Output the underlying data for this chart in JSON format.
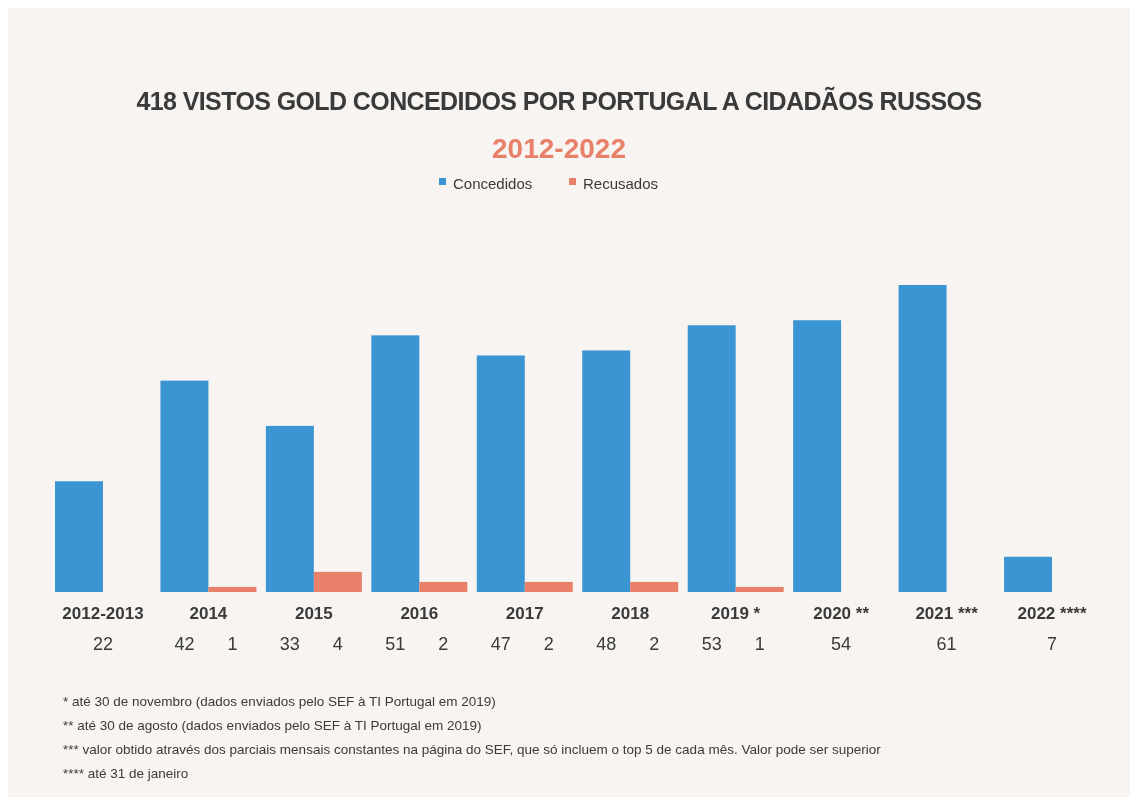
{
  "chart_data": {
    "type": "bar",
    "title": "418 VISTOS GOLD CONCEDIDOS POR PORTUGAL A CIDADÃOS RUSSOS",
    "subtitle": "2012-2022",
    "categories": [
      "2012-2013",
      "2014",
      "2015",
      "2016",
      "2017",
      "2018",
      "2019 *",
      "2020 **",
      "2021 ***",
      "2022 ****"
    ],
    "series": [
      {
        "name": "Concedidos",
        "color": "#3b95d3",
        "values": [
          22,
          42,
          33,
          51,
          47,
          48,
          53,
          54,
          61,
          7
        ]
      },
      {
        "name": "Recusados",
        "color": "#e8806a",
        "values": [
          null,
          1,
          4,
          2,
          2,
          2,
          1,
          null,
          null,
          null
        ]
      }
    ],
    "data_labels": true,
    "legend": "top",
    "grid": false,
    "annotations": [
      "* até 30 de novembro (dados enviados pelo SEF à TI Portugal em 2019)",
      "** até 30 de agosto (dados enviados pelo SEF à TI Portugal em 2019)",
      "*** valor obtido através dos parciais mensais constantes na página do SEF, que só incluem o top 5 de cada mês. Valor pode ser superior",
      "**** até 31 de janeiro"
    ]
  }
}
